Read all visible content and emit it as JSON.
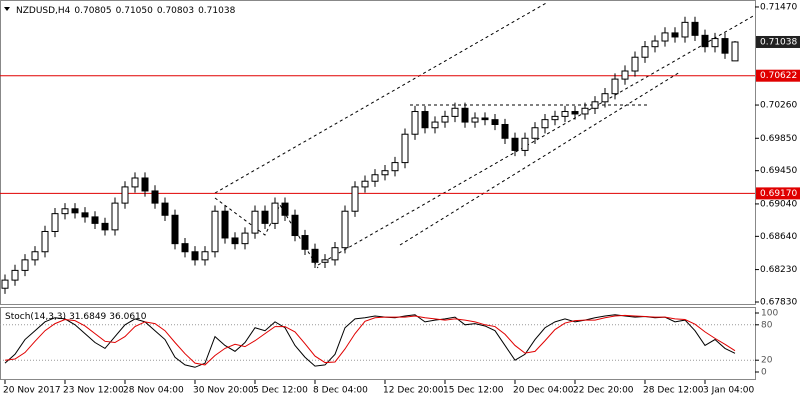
{
  "chart_data": {
    "type": "candlestick",
    "title": "NZDUSD,H4",
    "title_values": [
      "0.70805",
      "0.71050",
      "0.70803",
      "0.71038"
    ],
    "categories": [
      "20 Nov 2017",
      null,
      null,
      null,
      null,
      null,
      "23 Nov 12:00",
      null,
      null,
      null,
      null,
      null,
      "28 Nov 04:00",
      null,
      null,
      null,
      null,
      null,
      null,
      "30 Nov 20:00",
      null,
      null,
      null,
      null,
      null,
      "5 Dec 12:00",
      null,
      null,
      null,
      null,
      null,
      "8 Dec 04:00",
      null,
      null,
      null,
      null,
      null,
      null,
      "12 Dec 20:00",
      null,
      null,
      null,
      null,
      null,
      "15 Dec 12:00",
      null,
      null,
      null,
      null,
      null,
      null,
      "20 Dec 04:00",
      null,
      null,
      null,
      null,
      null,
      "22 Dec 20:00",
      null,
      null,
      null,
      null,
      null,
      null,
      "28 Dec 12:00",
      null,
      null,
      null,
      null,
      null,
      "3 Jan 04:00",
      null,
      null,
      null
    ],
    "open": [
      0.68,
      0.681,
      0.6822,
      0.6835,
      0.6845,
      0.687,
      0.6892,
      0.6898,
      0.6893,
      0.6888,
      0.688,
      0.6872,
      0.6905,
      0.6925,
      0.6936,
      0.692,
      0.6905,
      0.689,
      0.6855,
      0.6845,
      0.6835,
      0.6845,
      0.6895,
      0.6862,
      0.6855,
      0.6868,
      0.6895,
      0.688,
      0.6905,
      0.689,
      0.6865,
      0.6848,
      0.6832,
      0.6835,
      0.685,
      0.6895,
      0.6925,
      0.6932,
      0.694,
      0.6945,
      0.6955,
      0.699,
      0.7018,
      0.6998,
      0.7005,
      0.7012,
      0.7022,
      0.7005,
      0.701,
      0.7008,
      0.7002,
      0.6985,
      0.697,
      0.6985,
      0.6998,
      0.7008,
      0.7012,
      0.7018,
      0.7015,
      0.7022,
      0.703,
      0.704,
      0.7058,
      0.7068,
      0.7085,
      0.7098,
      0.7105,
      0.7115,
      0.711,
      0.7128,
      0.7112,
      0.7098,
      0.7108,
      0.70805
    ],
    "high": [
      0.6817,
      0.6829,
      0.6842,
      0.6852,
      0.6877,
      0.6899,
      0.6905,
      0.6905,
      0.69,
      0.6895,
      0.6887,
      0.6912,
      0.6932,
      0.6943,
      0.6943,
      0.6927,
      0.6912,
      0.6897,
      0.6862,
      0.6852,
      0.6852,
      0.6902,
      0.6902,
      0.6869,
      0.6875,
      0.6902,
      0.6902,
      0.6912,
      0.6912,
      0.6897,
      0.6872,
      0.6855,
      0.6842,
      0.6857,
      0.6902,
      0.6932,
      0.6939,
      0.6947,
      0.6952,
      0.6962,
      0.6997,
      0.7025,
      0.7025,
      0.7012,
      0.7019,
      0.7029,
      0.7029,
      0.7017,
      0.7017,
      0.7015,
      0.7009,
      0.6992,
      0.6992,
      0.7005,
      0.7015,
      0.7019,
      0.7025,
      0.7025,
      0.7029,
      0.7037,
      0.7047,
      0.7065,
      0.7075,
      0.7092,
      0.7105,
      0.7112,
      0.7122,
      0.7122,
      0.7135,
      0.7135,
      0.7119,
      0.7115,
      0.7115,
      0.7105
    ],
    "low": [
      0.6793,
      0.6803,
      0.6815,
      0.6828,
      0.6838,
      0.6863,
      0.6885,
      0.6886,
      0.6881,
      0.6873,
      0.6865,
      0.6865,
      0.6898,
      0.6918,
      0.6913,
      0.6898,
      0.6883,
      0.6848,
      0.6838,
      0.6828,
      0.6828,
      0.6838,
      0.6855,
      0.6848,
      0.6848,
      0.6861,
      0.6873,
      0.6873,
      0.6883,
      0.6858,
      0.6841,
      0.6825,
      0.6825,
      0.6828,
      0.6843,
      0.6888,
      0.6918,
      0.6925,
      0.6933,
      0.6938,
      0.6948,
      0.6983,
      0.6991,
      0.6991,
      0.6998,
      0.7005,
      0.6998,
      0.6998,
      0.7001,
      0.6995,
      0.6978,
      0.6963,
      0.6963,
      0.6978,
      0.6991,
      0.7001,
      0.7005,
      0.7008,
      0.7008,
      0.7015,
      0.7023,
      0.7033,
      0.7051,
      0.7061,
      0.7078,
      0.7091,
      0.7098,
      0.7103,
      0.7103,
      0.7105,
      0.7091,
      0.7091,
      0.7083,
      0.70803
    ],
    "close": [
      0.681,
      0.6822,
      0.6835,
      0.6845,
      0.687,
      0.6892,
      0.6898,
      0.6893,
      0.6888,
      0.688,
      0.6872,
      0.6905,
      0.6925,
      0.6936,
      0.692,
      0.6905,
      0.689,
      0.6855,
      0.6845,
      0.6835,
      0.6845,
      0.6895,
      0.6862,
      0.6855,
      0.6868,
      0.6895,
      0.688,
      0.6905,
      0.689,
      0.6865,
      0.6848,
      0.6832,
      0.6835,
      0.685,
      0.6895,
      0.6925,
      0.6932,
      0.694,
      0.6945,
      0.6955,
      0.699,
      0.7018,
      0.6998,
      0.7005,
      0.7012,
      0.7022,
      0.7005,
      0.701,
      0.7008,
      0.7002,
      0.6985,
      0.697,
      0.6985,
      0.6998,
      0.7008,
      0.7012,
      0.7018,
      0.7015,
      0.7022,
      0.703,
      0.704,
      0.7058,
      0.7068,
      0.7085,
      0.7098,
      0.7105,
      0.7115,
      0.711,
      0.7128,
      0.7112,
      0.7098,
      0.7108,
      0.709,
      0.71038
    ],
    "ylim": [
      0.67793,
      0.71556
    ],
    "yticks": [
      {
        "value": 0.7147,
        "label": "0.71470"
      },
      {
        "value": 0.7026,
        "label": "0.70260"
      },
      {
        "value": 0.6985,
        "label": "0.69850"
      },
      {
        "value": 0.6945,
        "label": "0.69450"
      },
      {
        "value": 0.6904,
        "label": "0.69040"
      },
      {
        "value": 0.6864,
        "label": "0.68640"
      },
      {
        "value": 0.6823,
        "label": "0.68230"
      },
      {
        "value": 0.6783,
        "label": "0.67830"
      }
    ],
    "levels": [
      {
        "value": 0.70622,
        "label": "0.70622",
        "color": "#e00000"
      },
      {
        "value": 0.6917,
        "label": "0.69170",
        "color": "#e00000"
      }
    ],
    "last_price": {
      "value": 0.71038,
      "label": "0.71038"
    },
    "indicator": {
      "title": "Stoch(14,3,3)",
      "value_labels": [
        "31.6849",
        "36.0610"
      ],
      "ylim": [
        0,
        100
      ],
      "yticks": [
        100,
        80,
        20,
        0
      ],
      "levels": [
        80,
        20
      ],
      "series": [
        {
          "color": "#000000",
          "values": [
            15,
            30,
            55,
            70,
            85,
            92,
            90,
            80,
            65,
            50,
            40,
            60,
            80,
            90,
            85,
            70,
            55,
            25,
            12,
            8,
            15,
            60,
            45,
            35,
            50,
            75,
            70,
            85,
            75,
            45,
            25,
            10,
            12,
            30,
            75,
            90,
            92,
            95,
            93,
            92,
            95,
            97,
            85,
            88,
            90,
            93,
            80,
            82,
            78,
            70,
            45,
            20,
            30,
            55,
            75,
            85,
            90,
            85,
            88,
            92,
            95,
            97,
            95,
            93,
            94,
            92,
            93,
            85,
            88,
            70,
            45,
            55,
            40,
            31.6849
          ]
        },
        {
          "color": "#e00000",
          "values": [
            20,
            22,
            33,
            52,
            70,
            82,
            89,
            87,
            78,
            65,
            52,
            50,
            60,
            77,
            85,
            82,
            70,
            50,
            31,
            15,
            12,
            28,
            40,
            47,
            43,
            53,
            65,
            77,
            77,
            68,
            48,
            27,
            16,
            17,
            39,
            65,
            86,
            92,
            93,
            93,
            93,
            95,
            92,
            90,
            88,
            90,
            88,
            85,
            80,
            77,
            64,
            45,
            32,
            35,
            53,
            72,
            83,
            87,
            88,
            88,
            92,
            95,
            96,
            95,
            94,
            93,
            93,
            90,
            89,
            81,
            68,
            57,
            47,
            36.061
          ]
        }
      ]
    }
  }
}
